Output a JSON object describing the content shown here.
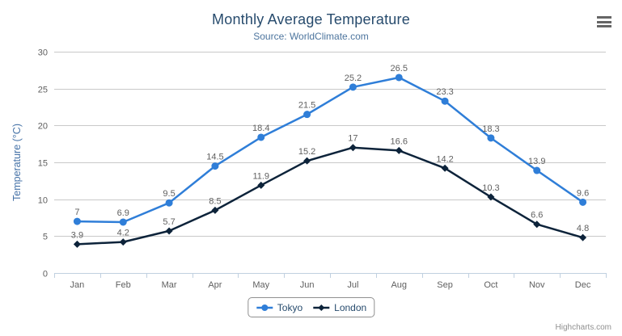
{
  "chart": {
    "credits": "Highcharts.com",
    "icons": {
      "context_menu": "hamburger-icon"
    }
  },
  "chart_data": {
    "type": "line",
    "title": "Monthly Average Temperature",
    "subtitle": "Source: WorldClimate.com",
    "categories": [
      "Jan",
      "Feb",
      "Mar",
      "Apr",
      "May",
      "Jun",
      "Jul",
      "Aug",
      "Sep",
      "Oct",
      "Nov",
      "Dec"
    ],
    "series": [
      {
        "name": "Tokyo",
        "color": "#2f7ed8",
        "marker": "circle",
        "values": [
          7,
          6.9,
          9.5,
          14.5,
          18.4,
          21.5,
          25.2,
          26.5,
          23.3,
          18.3,
          13.9,
          9.6
        ]
      },
      {
        "name": "London",
        "color": "#0d233a",
        "marker": "diamond",
        "values": [
          3.9,
          4.2,
          5.7,
          8.5,
          11.9,
          15.2,
          17,
          16.6,
          14.2,
          10.3,
          6.6,
          4.8
        ]
      }
    ],
    "xlabel": "",
    "ylabel": "Temperature (°C)",
    "ylim": [
      0,
      30
    ],
    "ytick_interval": 5,
    "grid": true,
    "data_labels": true,
    "legend_position": "bottom"
  },
  "colors": {
    "title": "#274b6d",
    "subtitle": "#4d759e",
    "axis_title": "#4572a7",
    "axis_labels": "#606060",
    "data_labels": "#606060",
    "gridline": "#c9c9c9",
    "axis_line": "#c0d0e0",
    "legend_border": "#909090",
    "legend_text": "#274b6d",
    "credits": "#909090",
    "menu_icon": "#666666",
    "background": "#ffffff"
  }
}
